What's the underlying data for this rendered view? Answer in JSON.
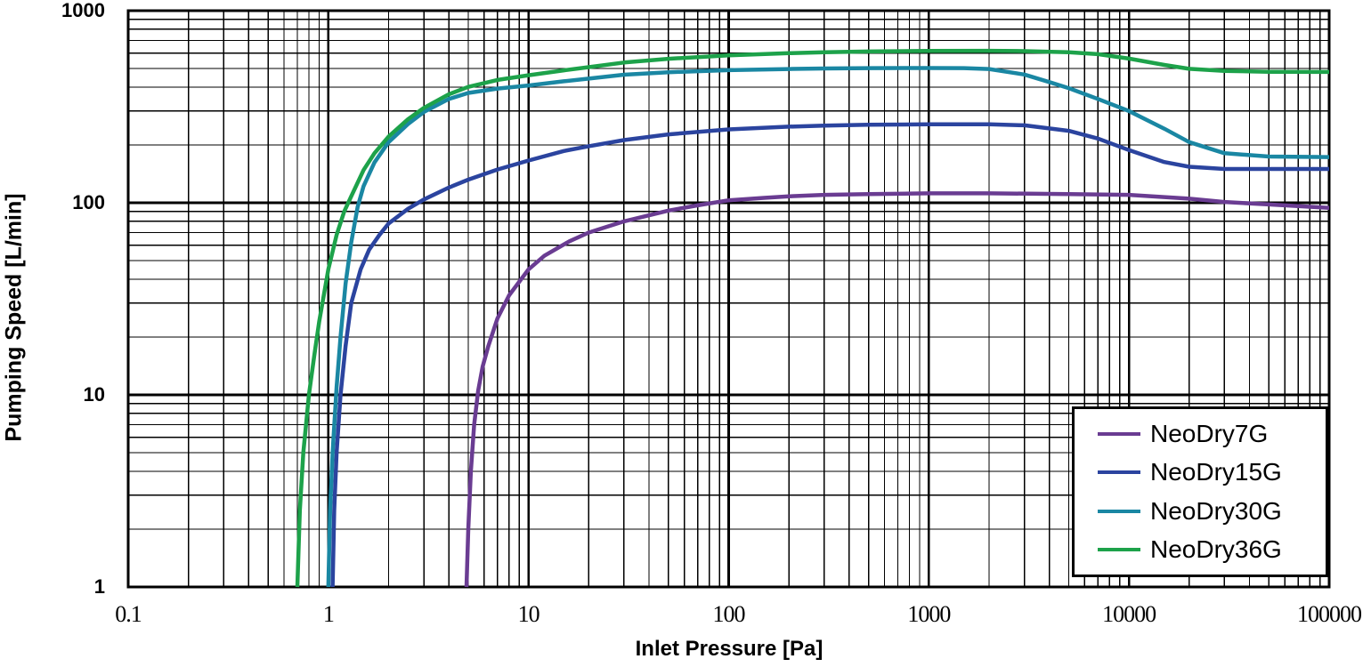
{
  "chart_data": {
    "type": "line",
    "title": "",
    "xlabel": "Inlet Pressure [Pa]",
    "ylabel": "Pumping Speed [L/min]",
    "x_scale": "log",
    "y_scale": "log",
    "xlim": [
      0.1,
      100000
    ],
    "ylim": [
      1,
      1000
    ],
    "x_ticks": [
      0.1,
      1,
      10,
      100,
      1000,
      10000,
      100000
    ],
    "x_tick_labels": [
      "0.1",
      "1",
      "10",
      "100",
      "1000",
      "10000",
      "100000"
    ],
    "y_ticks": [
      1,
      10,
      100,
      1000
    ],
    "y_tick_labels": [
      "1",
      "10",
      "100",
      "1000"
    ],
    "grid": "log major and minor gridlines, black, on both axes",
    "legend_position": "inside bottom-right",
    "series": [
      {
        "name": "NeoDry7G",
        "color": "#6A3C92",
        "points": [
          [
            4.9,
            1
          ],
          [
            5.0,
            2
          ],
          [
            5.15,
            4
          ],
          [
            5.35,
            7
          ],
          [
            5.6,
            10.5
          ],
          [
            5.9,
            14
          ],
          [
            6.3,
            18
          ],
          [
            7,
            25
          ],
          [
            8,
            33
          ],
          [
            10,
            45
          ],
          [
            12,
            53
          ],
          [
            16,
            63
          ],
          [
            20,
            70
          ],
          [
            30,
            80
          ],
          [
            50,
            91
          ],
          [
            70,
            97
          ],
          [
            100,
            103
          ],
          [
            150,
            106
          ],
          [
            200,
            108
          ],
          [
            300,
            110
          ],
          [
            500,
            111
          ],
          [
            1000,
            112
          ],
          [
            2000,
            112
          ],
          [
            5000,
            111
          ],
          [
            10000,
            110
          ],
          [
            20000,
            105
          ],
          [
            30000,
            101
          ],
          [
            50000,
            98
          ],
          [
            100000,
            94
          ]
        ]
      },
      {
        "name": "NeoDry15G",
        "color": "#2B449F",
        "points": [
          [
            1.05,
            1
          ],
          [
            1.07,
            2.5
          ],
          [
            1.1,
            5
          ],
          [
            1.15,
            10
          ],
          [
            1.22,
            18
          ],
          [
            1.3,
            30
          ],
          [
            1.45,
            45
          ],
          [
            1.6,
            57
          ],
          [
            1.8,
            68
          ],
          [
            2,
            78
          ],
          [
            2.5,
            93
          ],
          [
            3,
            104
          ],
          [
            4,
            120
          ],
          [
            5,
            132
          ],
          [
            7,
            149
          ],
          [
            10,
            166
          ],
          [
            15,
            186
          ],
          [
            20,
            197
          ],
          [
            30,
            212
          ],
          [
            50,
            227
          ],
          [
            100,
            241
          ],
          [
            200,
            249
          ],
          [
            300,
            252
          ],
          [
            500,
            255
          ],
          [
            1000,
            256
          ],
          [
            2000,
            256
          ],
          [
            3000,
            253
          ],
          [
            5000,
            237
          ],
          [
            7000,
            216
          ],
          [
            10000,
            188
          ],
          [
            15000,
            163
          ],
          [
            20000,
            154
          ],
          [
            30000,
            150
          ],
          [
            50000,
            150
          ],
          [
            100000,
            150
          ]
        ]
      },
      {
        "name": "NeoDry30G",
        "color": "#1A87A3",
        "points": [
          [
            1.0,
            1
          ],
          [
            1.02,
            2.5
          ],
          [
            1.05,
            5
          ],
          [
            1.1,
            11
          ],
          [
            1.15,
            20
          ],
          [
            1.22,
            38
          ],
          [
            1.3,
            62
          ],
          [
            1.4,
            95
          ],
          [
            1.5,
            122
          ],
          [
            1.7,
            162
          ],
          [
            2,
            207
          ],
          [
            2.5,
            257
          ],
          [
            3,
            297
          ],
          [
            4,
            347
          ],
          [
            5,
            373
          ],
          [
            7,
            393
          ],
          [
            10,
            408
          ],
          [
            15,
            429
          ],
          [
            20,
            443
          ],
          [
            30,
            464
          ],
          [
            50,
            478
          ],
          [
            100,
            490
          ],
          [
            200,
            497
          ],
          [
            300,
            500
          ],
          [
            500,
            502
          ],
          [
            1000,
            503
          ],
          [
            1500,
            502
          ],
          [
            2000,
            497
          ],
          [
            3000,
            465
          ],
          [
            4000,
            425
          ],
          [
            5000,
            395
          ],
          [
            7000,
            347
          ],
          [
            10000,
            300
          ],
          [
            15000,
            243
          ],
          [
            20000,
            207
          ],
          [
            30000,
            181
          ],
          [
            50000,
            174
          ],
          [
            100000,
            173
          ]
        ]
      },
      {
        "name": "NeoDry36G",
        "color": "#1DA24A",
        "points": [
          [
            0.7,
            1
          ],
          [
            0.72,
            2.5
          ],
          [
            0.75,
            5
          ],
          [
            0.8,
            10
          ],
          [
            0.85,
            16
          ],
          [
            0.9,
            24
          ],
          [
            1.0,
            45
          ],
          [
            1.1,
            68
          ],
          [
            1.2,
            90
          ],
          [
            1.3,
            108
          ],
          [
            1.5,
            148
          ],
          [
            1.7,
            181
          ],
          [
            2,
            221
          ],
          [
            2.5,
            272
          ],
          [
            3,
            312
          ],
          [
            4,
            367
          ],
          [
            5,
            401
          ],
          [
            7,
            436
          ],
          [
            10,
            461
          ],
          [
            15,
            489
          ],
          [
            20,
            508
          ],
          [
            30,
            537
          ],
          [
            50,
            562
          ],
          [
            100,
            585
          ],
          [
            200,
            601
          ],
          [
            300,
            608
          ],
          [
            500,
            613
          ],
          [
            1000,
            617
          ],
          [
            2000,
            618
          ],
          [
            3000,
            616
          ],
          [
            5000,
            608
          ],
          [
            7000,
            594
          ],
          [
            10000,
            563
          ],
          [
            15000,
            522
          ],
          [
            20000,
            498
          ],
          [
            30000,
            486
          ],
          [
            50000,
            481
          ],
          [
            100000,
            480
          ]
        ]
      }
    ]
  }
}
